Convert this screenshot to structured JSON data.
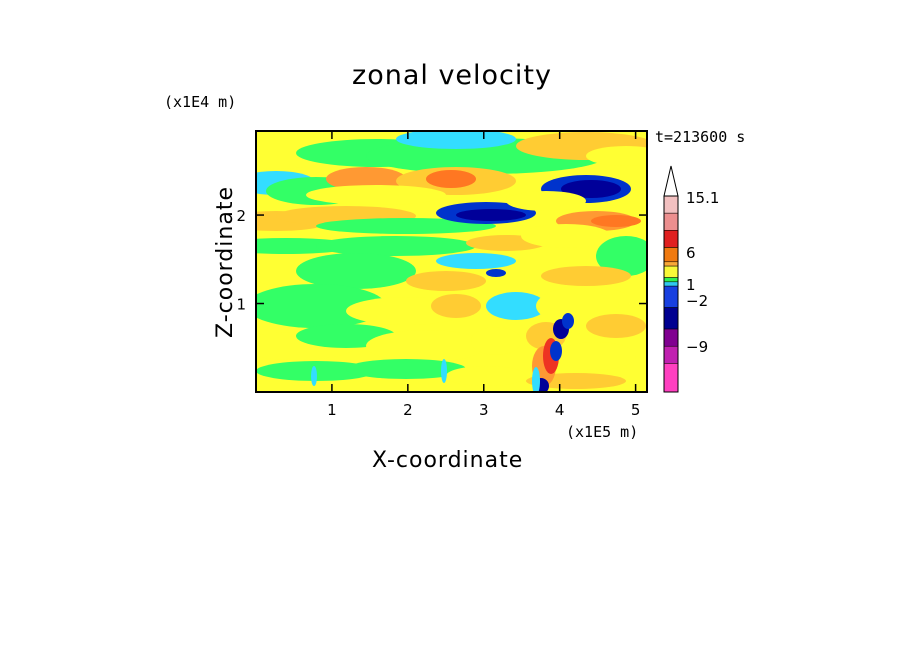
{
  "chart_data": {
    "type": "heatmap",
    "title": "zonal velocity",
    "xlabel": "X-coordinate",
    "ylabel": "Z-coordinate",
    "x_unit": "(x1E5 m)",
    "y_unit": "(x1E4 m)",
    "annotation": "t=213600 s",
    "x_ticks": [
      "1",
      "2",
      "3",
      "4",
      "5"
    ],
    "y_ticks": [
      "1",
      "2"
    ],
    "xlim": [
      0,
      5.15
    ],
    "ylim": [
      0,
      2.95
    ],
    "colorbar": {
      "labels": [
        "15.1",
        "6",
        "1",
        "−2",
        "−9"
      ],
      "colors": [
        "#f2c0c0",
        "#ec8f8f",
        "#e02020",
        "#f07a10",
        "#f8a838",
        "#f8f838",
        "#30f050",
        "#30c8f0",
        "#1840e0",
        "#000090",
        "#800090",
        "#c020b0",
        "#ff40c0"
      ]
    },
    "field_colors": {
      "yellow": "#ffff33",
      "green": "#33ff66",
      "light_orange": "#ffcc33",
      "orange": "#ff9933",
      "dark_orange": "#ff7722",
      "cyan": "#33ddff",
      "blue": "#0033cc",
      "dark_blue": "#000099",
      "red": "#ee3322"
    }
  }
}
